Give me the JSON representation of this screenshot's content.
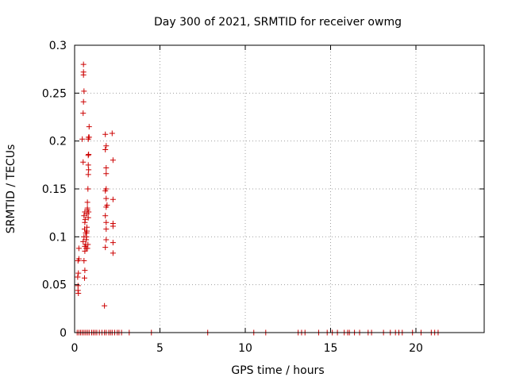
{
  "chart_data": {
    "type": "scatter",
    "title": "Day 300 of 2021, SRMTID for receiver owmg",
    "xlabel": "GPS time / hours",
    "ylabel": "SRMTID / TECUs",
    "xlim": [
      0,
      24
    ],
    "ylim": [
      0,
      0.3
    ],
    "xticks": [
      0,
      5,
      10,
      15,
      20
    ],
    "xtick_labels": [
      "0",
      "5",
      "10",
      "15",
      "20"
    ],
    "yticks": [
      0,
      0.05,
      0.1,
      0.15,
      0.2,
      0.25,
      0.3
    ],
    "ytick_labels": [
      "0",
      "0.05",
      "0.1",
      "0.15",
      "0.2",
      "0.25",
      "0.3"
    ],
    "grid": true,
    "marker": "+",
    "color": "#cc0000",
    "series": [
      {
        "name": "SRMTID",
        "points": [
          [
            0.15,
            0.0
          ],
          [
            0.25,
            0.0
          ],
          [
            0.35,
            0.0
          ],
          [
            0.45,
            0.0
          ],
          [
            0.55,
            0.0
          ],
          [
            0.65,
            0.0
          ],
          [
            0.75,
            0.0
          ],
          [
            0.85,
            0.0
          ],
          [
            1.0,
            0.0
          ],
          [
            1.1,
            0.0
          ],
          [
            1.2,
            0.0
          ],
          [
            1.3,
            0.0
          ],
          [
            1.45,
            0.0
          ],
          [
            1.6,
            0.0
          ],
          [
            1.75,
            0.0
          ],
          [
            1.85,
            0.0
          ],
          [
            2.0,
            0.0
          ],
          [
            2.1,
            0.0
          ],
          [
            2.2,
            0.0
          ],
          [
            2.35,
            0.0
          ],
          [
            2.5,
            0.0
          ],
          [
            2.6,
            0.0
          ],
          [
            2.75,
            0.0
          ],
          [
            3.2,
            0.0
          ],
          [
            4.5,
            0.0
          ],
          [
            7.8,
            0.0
          ],
          [
            10.5,
            0.0
          ],
          [
            11.2,
            0.0
          ],
          [
            13.1,
            0.0
          ],
          [
            13.3,
            0.0
          ],
          [
            13.5,
            0.0
          ],
          [
            14.3,
            0.0
          ],
          [
            14.8,
            0.0
          ],
          [
            15.1,
            0.0
          ],
          [
            15.4,
            0.0
          ],
          [
            15.8,
            0.0
          ],
          [
            16.0,
            0.0
          ],
          [
            16.1,
            0.0
          ],
          [
            16.4,
            0.0
          ],
          [
            16.7,
            0.0
          ],
          [
            17.2,
            0.0
          ],
          [
            17.4,
            0.0
          ],
          [
            18.1,
            0.0
          ],
          [
            18.5,
            0.0
          ],
          [
            18.8,
            0.0
          ],
          [
            19.0,
            0.0
          ],
          [
            19.2,
            0.0
          ],
          [
            19.8,
            0.0
          ],
          [
            20.3,
            0.0
          ],
          [
            20.9,
            0.0
          ],
          [
            21.1,
            0.0
          ],
          [
            21.3,
            0.0
          ],
          [
            0.2,
            0.044
          ],
          [
            0.22,
            0.041
          ],
          [
            0.2,
            0.049
          ],
          [
            0.18,
            0.058
          ],
          [
            0.22,
            0.062
          ],
          [
            0.2,
            0.075
          ],
          [
            0.25,
            0.077
          ],
          [
            0.25,
            0.088
          ],
          [
            0.45,
            0.202
          ],
          [
            0.5,
            0.178
          ],
          [
            0.5,
            0.229
          ],
          [
            0.52,
            0.241
          ],
          [
            0.55,
            0.252
          ],
          [
            0.52,
            0.269
          ],
          [
            0.52,
            0.272
          ],
          [
            0.52,
            0.28
          ],
          [
            0.5,
            0.095
          ],
          [
            0.55,
            0.1
          ],
          [
            0.58,
            0.108
          ],
          [
            0.6,
            0.115
          ],
          [
            0.55,
            0.122
          ],
          [
            0.6,
            0.126
          ],
          [
            0.62,
            0.118
          ],
          [
            0.65,
            0.104
          ],
          [
            0.68,
            0.097
          ],
          [
            0.65,
            0.092
          ],
          [
            0.6,
            0.09
          ],
          [
            0.6,
            0.085
          ],
          [
            0.55,
            0.075
          ],
          [
            0.6,
            0.065
          ],
          [
            0.58,
            0.057
          ],
          [
            0.7,
            0.104
          ],
          [
            0.72,
            0.11
          ],
          [
            0.72,
            0.124
          ],
          [
            0.75,
            0.13
          ],
          [
            0.75,
            0.128
          ],
          [
            0.75,
            0.136
          ],
          [
            0.72,
            0.106
          ],
          [
            0.7,
            0.1
          ],
          [
            0.68,
            0.088
          ],
          [
            0.8,
            0.12
          ],
          [
            0.82,
            0.126
          ],
          [
            0.78,
            0.15
          ],
          [
            0.8,
            0.165
          ],
          [
            0.82,
            0.17
          ],
          [
            0.8,
            0.175
          ],
          [
            0.8,
            0.185
          ],
          [
            0.82,
            0.186
          ],
          [
            0.8,
            0.202
          ],
          [
            0.82,
            0.204
          ],
          [
            0.85,
            0.204
          ],
          [
            0.85,
            0.215
          ],
          [
            0.75,
            0.088
          ],
          [
            0.78,
            0.092
          ],
          [
            1.75,
            0.028
          ],
          [
            1.8,
            0.089
          ],
          [
            1.85,
            0.097
          ],
          [
            1.85,
            0.108
          ],
          [
            1.85,
            0.115
          ],
          [
            1.8,
            0.122
          ],
          [
            1.85,
            0.131
          ],
          [
            1.9,
            0.133
          ],
          [
            1.85,
            0.14
          ],
          [
            1.8,
            0.148
          ],
          [
            1.85,
            0.15
          ],
          [
            1.85,
            0.166
          ],
          [
            1.85,
            0.172
          ],
          [
            1.8,
            0.191
          ],
          [
            1.85,
            0.195
          ],
          [
            1.8,
            0.207
          ],
          [
            2.2,
            0.208
          ],
          [
            2.25,
            0.18
          ],
          [
            2.25,
            0.139
          ],
          [
            2.25,
            0.114
          ],
          [
            2.25,
            0.111
          ],
          [
            2.25,
            0.094
          ],
          [
            2.25,
            0.083
          ]
        ]
      }
    ]
  }
}
